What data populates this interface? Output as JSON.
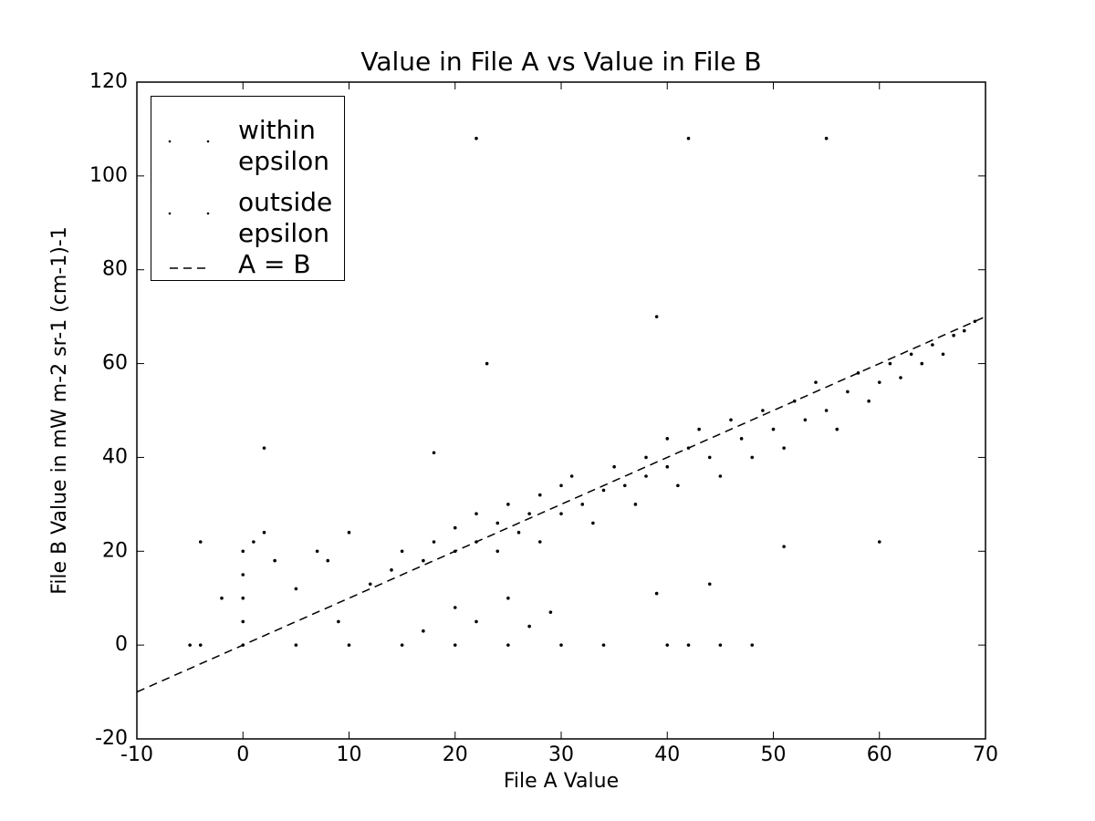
{
  "chart_data": {
    "type": "scatter",
    "title": "Value in File A vs Value in File B",
    "x_label": "File A Value",
    "y_label": "File B Value in mW m-2 sr-1 (cm-1)-1",
    "xlim": [
      -10,
      70
    ],
    "xticks": [
      -10,
      0,
      10,
      20,
      30,
      40,
      50,
      60,
      70
    ],
    "ylim": [
      -20,
      120
    ],
    "yticks": [
      -20,
      0,
      20,
      40,
      60,
      80,
      100,
      120
    ],
    "legend": "upper left",
    "series": [
      {
        "name": "within epsilon",
        "color": "#000000",
        "x": [
          12,
          14,
          15,
          17,
          18,
          20,
          20,
          22,
          22,
          24,
          24,
          25,
          26,
          27,
          28,
          28,
          30,
          30,
          31,
          32,
          33,
          34,
          35,
          36,
          37,
          38,
          38,
          40,
          40,
          41,
          42,
          43,
          44,
          45,
          46,
          47,
          48,
          49,
          50,
          51,
          52,
          53,
          54,
          55,
          56,
          57,
          58,
          59,
          60,
          61,
          62,
          63,
          64,
          65,
          66,
          67,
          68,
          69,
          -5,
          0,
          5,
          10,
          15,
          20,
          25,
          30,
          34,
          40,
          42,
          45,
          48
        ],
        "values": [
          13,
          16,
          20,
          18,
          22,
          20,
          25,
          22,
          28,
          20,
          26,
          30,
          24,
          28,
          32,
          22,
          28,
          34,
          36,
          30,
          26,
          33,
          38,
          34,
          30,
          40,
          36,
          44,
          38,
          34,
          42,
          46,
          40,
          36,
          48,
          44,
          40,
          50,
          46,
          42,
          52,
          48,
          56,
          50,
          46,
          54,
          58,
          52,
          56,
          60,
          57,
          62,
          60,
          64,
          62,
          66,
          67,
          69,
          0,
          0,
          0,
          0,
          0,
          0,
          0,
          0,
          0,
          0,
          0,
          0,
          0
        ]
      },
      {
        "name": "outside epsilon",
        "color": "#000000",
        "x": [
          -4,
          0,
          0,
          0,
          0,
          1,
          3,
          2,
          -2,
          -4,
          5,
          7,
          8,
          10,
          9,
          17,
          20,
          22,
          25,
          27,
          29,
          18,
          2,
          23,
          39,
          22,
          42,
          55,
          39,
          44,
          60,
          51
        ],
        "values": [
          22,
          20,
          15,
          10,
          5,
          22,
          18,
          24,
          10,
          0,
          12,
          20,
          18,
          24,
          5,
          3,
          8,
          5,
          10,
          4,
          7,
          41,
          42,
          60,
          70,
          108,
          108,
          108,
          11,
          13,
          22,
          21
        ]
      },
      {
        "name": "A = B",
        "type": "line",
        "color": "#000000",
        "dash": true,
        "x": [
          -10,
          70
        ],
        "values": [
          -10,
          70
        ]
      }
    ]
  }
}
